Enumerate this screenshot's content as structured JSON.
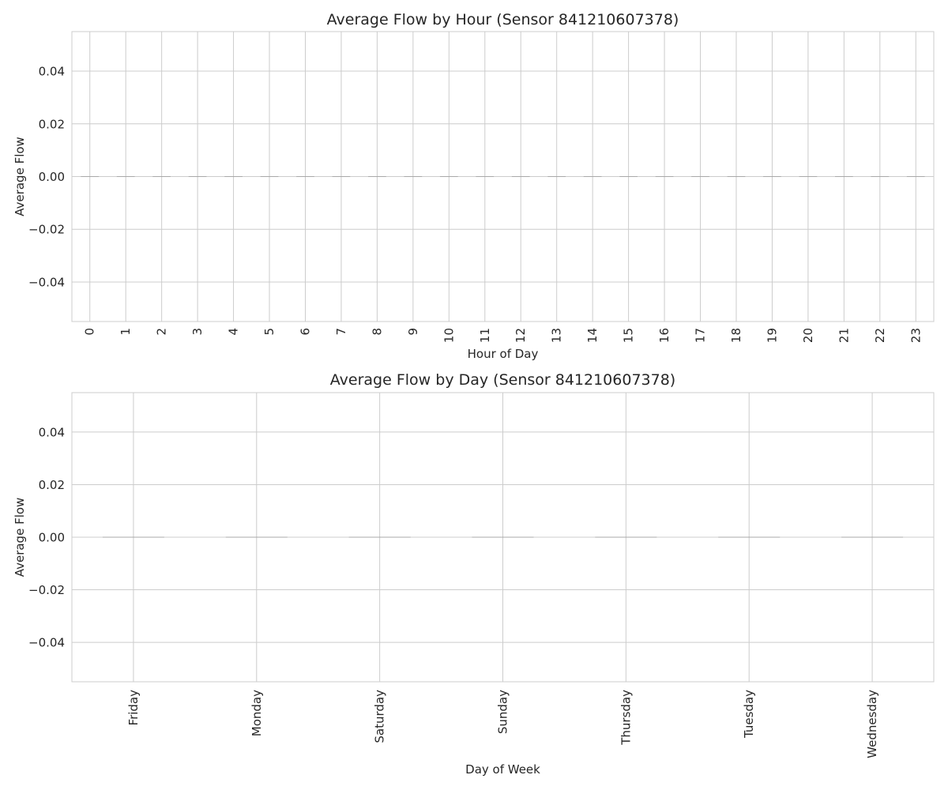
{
  "chart_data": [
    {
      "type": "bar",
      "title": "Average Flow by Hour (Sensor 841210607378)",
      "xlabel": "Hour of Day",
      "ylabel": "Average Flow",
      "categories": [
        "0",
        "1",
        "2",
        "3",
        "4",
        "5",
        "6",
        "7",
        "8",
        "9",
        "10",
        "11",
        "12",
        "13",
        "14",
        "15",
        "16",
        "17",
        "18",
        "19",
        "20",
        "21",
        "22",
        "23"
      ],
      "values": [
        0,
        0,
        0,
        0,
        0,
        0,
        0,
        0,
        0,
        0,
        0,
        0,
        0,
        0,
        0,
        0,
        0,
        0,
        0,
        0,
        0,
        0,
        0,
        0
      ],
      "ylim": [
        -0.055,
        0.055
      ],
      "yticks": [
        -0.04,
        -0.02,
        0.0,
        0.02,
        0.04
      ],
      "ytick_labels": [
        "−0.04",
        "−0.02",
        "0.00",
        "0.02",
        "0.04"
      ],
      "xtick_rotation": "vertical",
      "grid": true,
      "legend": "none",
      "bar_color": "#a0a0a0"
    },
    {
      "type": "bar",
      "title": "Average Flow by Day (Sensor 841210607378)",
      "xlabel": "Day of Week",
      "ylabel": "Average Flow",
      "categories": [
        "Friday",
        "Monday",
        "Saturday",
        "Sunday",
        "Thursday",
        "Tuesday",
        "Wednesday"
      ],
      "values": [
        0,
        0,
        0,
        0,
        0,
        0,
        0
      ],
      "ylim": [
        -0.055,
        0.055
      ],
      "yticks": [
        -0.04,
        -0.02,
        0.0,
        0.02,
        0.04
      ],
      "ytick_labels": [
        "−0.04",
        "−0.02",
        "0.00",
        "0.02",
        "0.04"
      ],
      "xtick_rotation": "vertical",
      "grid": true,
      "legend": "none",
      "bar_color": "#a0a0a0"
    }
  ],
  "colors": {
    "grid": "#cccccc",
    "spine": "#cccccc",
    "text": "#262626",
    "background": "#ffffff"
  }
}
